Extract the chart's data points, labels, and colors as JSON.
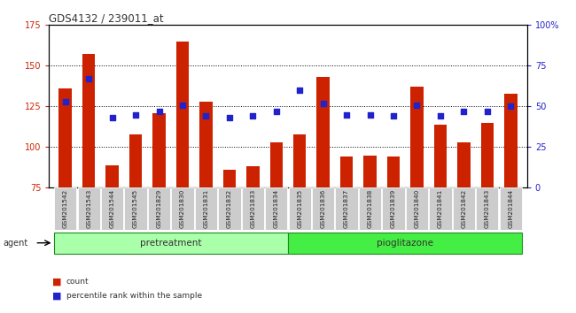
{
  "title": "GDS4132 / 239011_at",
  "samples": [
    "GSM201542",
    "GSM201543",
    "GSM201544",
    "GSM201545",
    "GSM201829",
    "GSM201830",
    "GSM201831",
    "GSM201832",
    "GSM201833",
    "GSM201834",
    "GSM201835",
    "GSM201836",
    "GSM201837",
    "GSM201838",
    "GSM201839",
    "GSM201840",
    "GSM201841",
    "GSM201842",
    "GSM201843",
    "GSM201844"
  ],
  "counts": [
    136,
    157,
    89,
    108,
    121,
    165,
    128,
    86,
    88,
    103,
    108,
    143,
    94,
    95,
    94,
    137,
    114,
    103,
    115,
    133
  ],
  "percentiles": [
    53,
    67,
    43,
    45,
    47,
    51,
    44,
    43,
    44,
    47,
    60,
    52,
    45,
    45,
    44,
    51,
    44,
    47,
    47,
    50
  ],
  "bar_color": "#cc2200",
  "dot_color": "#2222cc",
  "ylim_left": [
    75,
    175
  ],
  "ylim_right": [
    0,
    100
  ],
  "yticks_left": [
    75,
    100,
    125,
    150,
    175
  ],
  "yticks_right": [
    0,
    25,
    50,
    75,
    100
  ],
  "ytick_labels_right": [
    "0",
    "25",
    "50",
    "75",
    "100%"
  ],
  "group1_label": "pretreatment",
  "group2_label": "pioglitazone",
  "group1_count": 10,
  "group2_count": 10,
  "group1_color": "#aaffaa",
  "group2_color": "#44ee44",
  "agent_label": "agent",
  "bar_width": 0.55,
  "bg_color": "#cccccc",
  "plot_bg_color": "#ffffff"
}
